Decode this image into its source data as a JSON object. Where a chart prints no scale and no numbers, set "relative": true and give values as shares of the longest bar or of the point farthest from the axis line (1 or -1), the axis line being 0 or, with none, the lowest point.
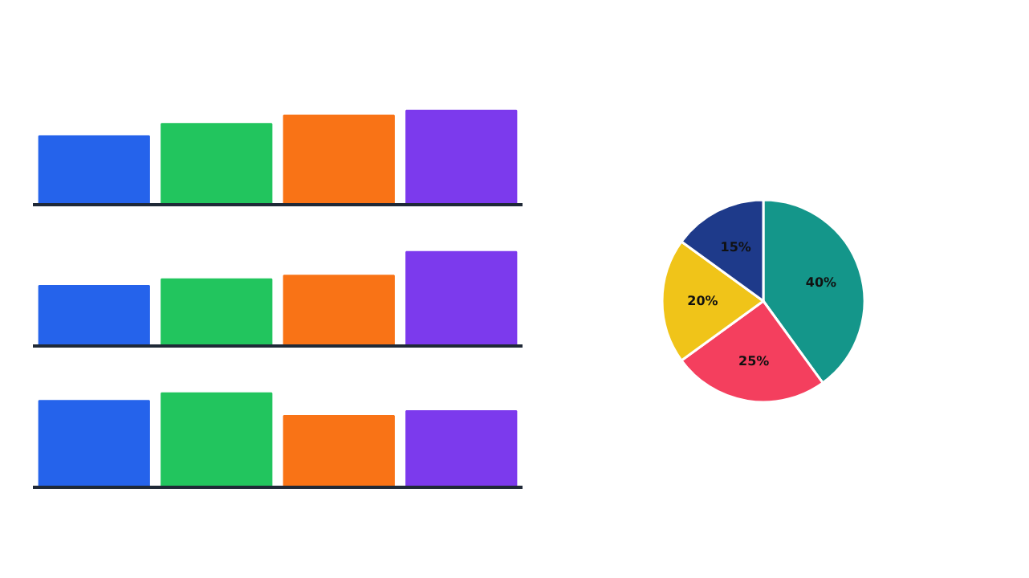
{
  "chart_data": [
    {
      "type": "bar",
      "relative": true,
      "categories": [
        null,
        null,
        null,
        null
      ],
      "values": [
        0.73,
        0.86,
        0.95,
        1
      ],
      "colors": [
        "#2563eb",
        "#22c55e",
        "#f97316",
        "#7c3aed"
      ]
    },
    {
      "type": "bar",
      "relative": true,
      "categories": [
        null,
        null,
        null,
        null
      ],
      "values": [
        0.64,
        0.71,
        0.75,
        1
      ],
      "colors": [
        "#2563eb",
        "#22c55e",
        "#f97316",
        "#7c3aed"
      ]
    },
    {
      "type": "bar",
      "relative": true,
      "categories": [
        null,
        null,
        null,
        null
      ],
      "values": [
        0.92,
        1,
        0.76,
        0.81
      ],
      "colors": [
        "#2563eb",
        "#22c55e",
        "#f97316",
        "#7c3aed"
      ]
    },
    {
      "type": "pie",
      "categories": [
        null,
        null,
        null,
        null
      ],
      "values": [
        40,
        25,
        20,
        15
      ],
      "colors": [
        "#14968a",
        "#f43f5e",
        "#f0c419",
        "#1e3a8a"
      ],
      "value_labels": [
        "40%",
        "25%",
        "20%",
        "15%"
      ]
    }
  ]
}
